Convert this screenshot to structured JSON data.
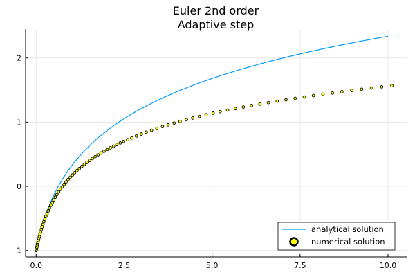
{
  "chart_data": {
    "type": "line",
    "title": "Euler 2nd order",
    "subtitle": "Adaptive step",
    "xlabel": "",
    "ylabel": "",
    "xlim": [
      -0.3,
      10.55
    ],
    "ylim": [
      -1.1,
      2.45
    ],
    "grid": true,
    "legend_position": "bottom-right",
    "x_ticks": [
      0.0,
      2.5,
      5.0,
      7.5,
      10.0
    ],
    "x_tick_labels": [
      "0.0",
      "2.5",
      "5.0",
      "7.5",
      "10.0"
    ],
    "y_ticks": [
      -1,
      0,
      1,
      2
    ],
    "y_tick_labels": [
      "-1",
      "0",
      "1",
      "2"
    ],
    "series": [
      {
        "name": "analytical solution",
        "kind": "line",
        "color": "#009AFA",
        "function": "log(x+e^-1)",
        "x_range": [
          0.0,
          10.0
        ]
      },
      {
        "name": "numerical solution",
        "kind": "scatter",
        "fill_color": "#FFFF00",
        "edge_color": "#000000",
        "x": [
          0.0,
          0.006,
          0.013,
          0.021,
          0.03,
          0.04,
          0.051,
          0.063,
          0.077,
          0.092,
          0.109,
          0.127,
          0.147,
          0.169,
          0.193,
          0.219,
          0.247,
          0.277,
          0.309,
          0.343,
          0.379,
          0.417,
          0.457,
          0.499,
          0.543,
          0.589,
          0.637,
          0.687,
          0.739,
          0.793,
          0.849,
          0.907,
          0.967,
          1.029,
          1.093,
          1.159,
          1.227,
          1.297,
          1.369,
          1.443,
          1.519,
          1.597,
          1.677,
          1.759,
          1.843,
          1.929,
          2.017,
          2.107,
          2.199,
          2.293,
          2.389,
          2.487,
          2.6,
          2.72,
          2.85,
          2.99,
          3.13,
          3.28,
          3.43,
          3.59,
          3.75,
          3.92,
          4.09,
          4.27,
          4.45,
          4.64,
          4.83,
          5.03,
          5.23,
          5.44,
          5.66,
          5.89,
          6.12,
          6.36,
          6.6,
          6.85,
          7.1,
          7.36,
          7.62,
          7.88,
          8.15,
          8.42,
          8.69,
          8.97,
          9.25,
          9.53,
          9.82,
          10.11
        ],
        "y": [
          -1.0,
          -0.984,
          -0.965,
          -0.945,
          -0.922,
          -0.897,
          -0.871,
          -0.843,
          -0.812,
          -0.78,
          -0.745,
          -0.71,
          -0.672,
          -0.633,
          -0.593,
          -0.552,
          -0.51,
          -0.468,
          -0.425,
          -0.382,
          -0.339,
          -0.296,
          -0.253,
          -0.211,
          -0.169,
          -0.128,
          -0.087,
          -0.047,
          -0.008,
          0.03,
          0.068,
          0.105,
          0.141,
          0.176,
          0.211,
          0.244,
          0.278,
          0.31,
          0.342,
          0.373,
          0.403,
          0.433,
          0.462,
          0.491,
          0.519,
          0.546,
          0.573,
          0.6,
          0.625,
          0.651,
          0.676,
          0.7,
          0.727,
          0.755,
          0.785,
          0.815,
          0.844,
          0.874,
          0.902,
          0.931,
          0.958,
          0.986,
          1.012,
          1.039,
          1.065,
          1.09,
          1.115,
          1.14,
          1.164,
          1.188,
          1.212,
          1.235,
          1.259,
          1.282,
          1.304,
          1.327,
          1.349,
          1.371,
          1.392,
          1.413,
          1.434,
          1.454,
          1.474,
          1.494,
          1.513,
          1.532,
          1.55,
          1.569
        ]
      }
    ]
  }
}
